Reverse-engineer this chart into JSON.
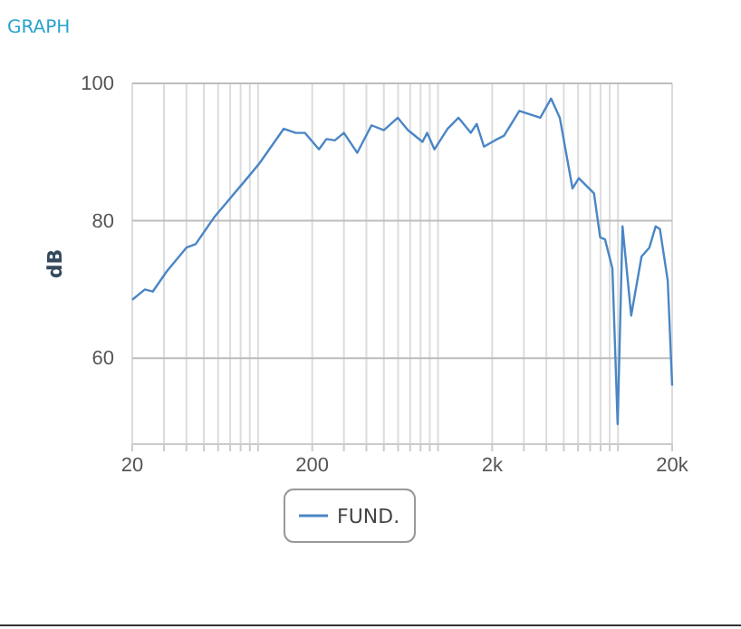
{
  "chart_data": {
    "type": "line",
    "title": "GRAPH",
    "ylabel": "dB",
    "log": "x",
    "grid": true,
    "legend": "bottom",
    "line_style": "solid",
    "marker": "none",
    "xlim": [
      20,
      20000
    ],
    "ylim": [
      47.5,
      100
    ],
    "yticks": [
      60,
      80,
      100
    ],
    "xticks": [
      20,
      {
        "value": 30,
        "label": null
      },
      {
        "value": 40,
        "label": null
      },
      {
        "value": 50,
        "label": null
      },
      {
        "value": 60,
        "label": null
      },
      {
        "value": 70,
        "label": null
      },
      {
        "value": 80,
        "label": null
      },
      {
        "value": 90,
        "label": null
      },
      {
        "value": 100,
        "label": null
      },
      200,
      {
        "value": 300,
        "label": null
      },
      {
        "value": 400,
        "label": null
      },
      {
        "value": 500,
        "label": null
      },
      {
        "value": 600,
        "label": null
      },
      {
        "value": 700,
        "label": null
      },
      {
        "value": 800,
        "label": null
      },
      {
        "value": 900,
        "label": null
      },
      {
        "value": 1000,
        "label": null
      },
      {
        "value": 2000,
        "label": "2k"
      },
      {
        "value": 3000,
        "label": null
      },
      {
        "value": 4000,
        "label": null
      },
      {
        "value": 5000,
        "label": null
      },
      {
        "value": 6000,
        "label": null
      },
      {
        "value": 7000,
        "label": null
      },
      {
        "value": 8000,
        "label": null
      },
      {
        "value": 9000,
        "label": null
      },
      {
        "value": 10000,
        "label": null
      },
      {
        "value": 20000,
        "label": "20k"
      }
    ],
    "x": [
      20,
      23.5,
      26,
      31,
      40,
      45,
      57,
      87,
      102,
      139,
      162,
      182,
      218,
      240,
      267,
      300,
      356,
      427,
      500,
      598,
      680,
      820,
      870,
      955,
      1130,
      1300,
      1520,
      1640,
      1800,
      2070,
      2330,
      2830,
      3700,
      4250,
      4750,
      5590,
      6060,
      7360,
      7960,
      8470,
      9310,
      9960,
      10600,
      11840,
      13520,
      14940,
      16200,
      17100,
      18900,
      20000
    ],
    "series": [
      {
        "name": "FUND.",
        "color": "#4a86c5",
        "values": [
          68.5,
          70,
          69.7,
          72.6,
          76.1,
          76.6,
          80.5,
          86.2,
          88.4,
          93.4,
          92.8,
          92.8,
          90.4,
          91.9,
          91.7,
          92.8,
          89.9,
          93.9,
          93.2,
          95,
          93.2,
          91.5,
          92.8,
          90.4,
          93.4,
          95,
          92.8,
          94.1,
          90.8,
          91.7,
          92.4,
          96,
          95,
          97.8,
          95,
          84.7,
          86.2,
          84,
          77.6,
          77.3,
          73.1,
          50.4,
          79.2,
          66.2,
          74.8,
          76.1,
          79.2,
          78.8,
          71.3,
          56
        ]
      }
    ]
  }
}
